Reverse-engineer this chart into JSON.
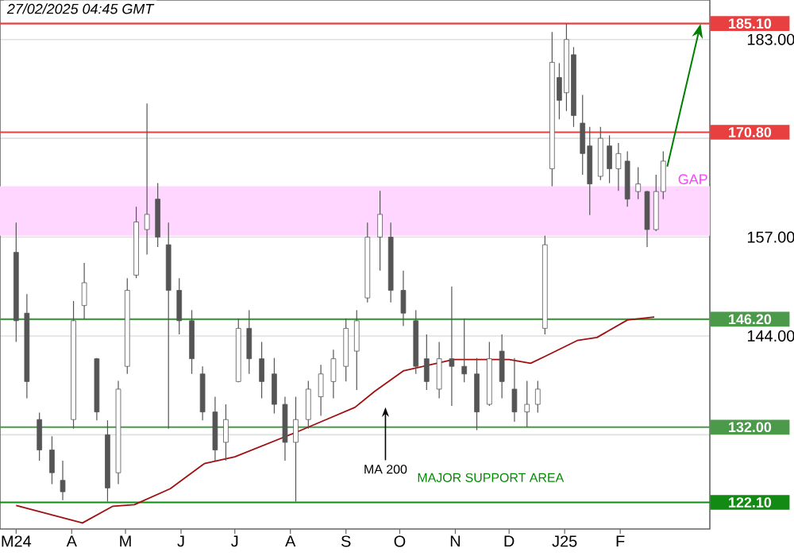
{
  "chart_data": {
    "type": "candlestick",
    "title": "27/02/2025 04:45 GMT",
    "color": "#555555",
    "x": [
      "2024-03-01",
      "2024-03-07",
      "2024-03-14",
      "2024-03-21",
      "2024-03-27",
      "2024-04-02",
      "2024-04-08",
      "2024-04-15",
      "2024-04-21",
      "2024-04-27",
      "2024-05-02",
      "2024-05-07",
      "2024-05-13",
      "2024-05-19",
      "2024-05-25",
      "2024-05-31",
      "2024-06-07",
      "2024-06-13",
      "2024-06-20",
      "2024-06-26",
      "2024-07-03",
      "2024-07-09",
      "2024-07-16",
      "2024-07-23",
      "2024-07-29",
      "2024-08-04",
      "2024-08-11",
      "2024-08-18",
      "2024-08-25",
      "2024-09-01",
      "2024-09-07",
      "2024-09-13",
      "2024-09-20",
      "2024-09-26",
      "2024-10-03",
      "2024-10-10",
      "2024-10-16",
      "2024-10-23",
      "2024-10-30",
      "2024-11-06",
      "2024-11-13",
      "2024-11-20",
      "2024-11-27",
      "2024-12-04",
      "2024-12-11",
      "2024-12-17",
      "2024-12-21",
      "2024-12-25",
      "2024-12-29",
      "2025-01-02",
      "2025-01-06",
      "2025-01-11",
      "2025-01-15",
      "2025-01-21",
      "2025-01-26",
      "2025-01-31",
      "2025-02-05",
      "2025-02-11",
      "2025-02-16",
      "2025-02-21",
      "2025-02-25"
    ],
    "ohlc": [
      [
        155,
        158.9,
        143.2,
        146
      ],
      [
        147,
        149.5,
        135.8,
        138
      ],
      [
        133,
        133.9,
        127.6,
        129
      ],
      [
        129,
        130.8,
        124.5,
        126
      ],
      [
        125,
        127.6,
        122.4,
        123.5
      ],
      [
        133,
        148.6,
        131.8,
        146
      ],
      [
        148,
        153.6,
        146.2,
        151
      ],
      [
        141,
        141.1,
        132.9,
        134
      ],
      [
        131,
        132.9,
        122.2,
        124
      ],
      [
        126,
        138.1,
        124.5,
        137
      ],
      [
        140,
        151.6,
        139,
        150
      ],
      [
        152,
        161,
        151.6,
        159
      ],
      [
        158,
        174.6,
        154.7,
        160
      ],
      [
        162,
        164.1,
        155.7,
        157
      ],
      [
        156,
        158.9,
        131.8,
        150
      ],
      [
        150,
        151.6,
        144.2,
        146
      ],
      [
        146,
        147.4,
        139,
        141
      ],
      [
        139,
        140,
        132.9,
        134
      ],
      [
        134,
        136,
        127.6,
        129
      ],
      [
        130,
        135,
        127.6,
        133
      ],
      [
        138,
        146.3,
        137.9,
        145
      ],
      [
        145,
        147.4,
        139,
        141
      ],
      [
        141,
        143.2,
        135.8,
        138
      ],
      [
        139,
        141.1,
        133.8,
        135
      ],
      [
        135,
        136,
        127.6,
        130
      ],
      [
        130,
        136,
        122.2,
        133
      ],
      [
        133,
        138.1,
        131.8,
        137
      ],
      [
        136,
        140.2,
        133.5,
        139
      ],
      [
        138,
        142.2,
        135.8,
        141
      ],
      [
        140,
        146.3,
        138,
        145
      ],
      [
        142,
        147.4,
        136.9,
        146
      ],
      [
        149,
        158.9,
        148.4,
        157
      ],
      [
        157,
        163.1,
        152.6,
        160
      ],
      [
        157,
        158.9,
        148.4,
        150
      ],
      [
        150,
        152.6,
        145.3,
        147
      ],
      [
        146,
        147.4,
        139,
        140
      ],
      [
        141,
        144.2,
        136.9,
        138
      ],
      [
        137,
        143.2,
        135.8,
        141
      ],
      [
        141,
        150.5,
        134.8,
        140
      ],
      [
        140,
        146.3,
        137.9,
        139
      ],
      [
        139,
        141.1,
        131.6,
        134
      ],
      [
        135,
        143.2,
        134.8,
        141
      ],
      [
        142,
        144.2,
        135.8,
        138
      ],
      [
        137,
        141.1,
        132.7,
        134
      ],
      [
        134,
        138.1,
        132,
        135
      ],
      [
        135,
        138.1,
        133.9,
        137
      ],
      [
        145,
        157.2,
        144.2,
        156
      ],
      [
        166,
        184,
        163.7,
        180
      ],
      [
        178,
        179.9,
        172.5,
        175
      ],
      [
        176,
        185.1,
        173.6,
        183
      ],
      [
        181,
        182,
        171.5,
        173
      ],
      [
        172,
        175.7,
        165.2,
        168
      ],
      [
        169,
        171.5,
        159.9,
        164
      ],
      [
        165,
        171.5,
        164.5,
        170
      ],
      [
        169,
        170.4,
        164.1,
        166
      ],
      [
        166,
        169.4,
        163.1,
        168
      ],
      [
        167,
        168.3,
        161,
        162
      ],
      [
        163,
        166.2,
        162,
        164
      ],
      [
        163,
        163.1,
        155.7,
        158
      ],
      [
        158,
        165.2,
        157.8,
        163
      ],
      [
        163,
        168.3,
        162,
        167
      ]
    ],
    "series": [
      {
        "type": "line",
        "color": "#a01010",
        "x": [
          "2024-03-01",
          "2024-04-07",
          "2024-04-24",
          "2024-05-06",
          "2024-05-26",
          "2024-06-14",
          "2024-07-01",
          "2024-08-05",
          "2024-08-22",
          "2024-09-06",
          "2024-09-17",
          "2024-10-03",
          "2024-10-31",
          "2024-12-01",
          "2024-12-13",
          "2024-12-21",
          "2025-01-08",
          "2025-01-19",
          "2025-02-05",
          "2025-02-20"
        ],
        "values": [
          121.7,
          119.4,
          121.6,
          121.8,
          123.9,
          127.2,
          128.1,
          131.4,
          133.1,
          134.6,
          136.7,
          139.4,
          140.9,
          140.9,
          140.4,
          141.3,
          143.4,
          143.8,
          146.1,
          146.5
        ]
      }
    ],
    "xlim": [
      "2024-02-21",
      "2025-03-23"
    ],
    "xticks": [
      {
        "value": "2024-03-01",
        "label": "M24"
      },
      {
        "value": "2024-04-01",
        "label": "A"
      },
      {
        "value": "2024-05-01",
        "label": "M"
      },
      {
        "value": "2024-06-01",
        "label": "J"
      },
      {
        "value": "2024-07-01",
        "label": "J"
      },
      {
        "value": "2024-08-01",
        "label": "A"
      },
      {
        "value": "2024-09-01",
        "label": "S"
      },
      {
        "value": "2024-10-01",
        "label": "O"
      },
      {
        "value": "2024-11-01",
        "label": "N"
      },
      {
        "value": "2024-12-01",
        "label": "D"
      },
      {
        "value": "2025-01-01",
        "label": "J25"
      },
      {
        "value": "2025-02-01",
        "label": "F"
      }
    ],
    "ylim": [
      118.6,
      188.2
    ],
    "yticks": [
      {
        "value": 131,
        "label": null
      },
      {
        "value": 144,
        "label": "144.00"
      },
      {
        "value": 157,
        "label": "157.00"
      },
      {
        "value": 170,
        "label": null
      },
      {
        "value": 183,
        "label": "183.00"
      }
    ],
    "grid": "y",
    "ref_lines": [
      {
        "axis": "y",
        "value": 185.1,
        "label": "185.10",
        "color": "#e84040"
      },
      {
        "axis": "y",
        "value": 170.8,
        "label": "170.80",
        "color": "#e84040"
      },
      {
        "axis": "y",
        "value": 146.2,
        "label": "146.20",
        "color": "#4a9a4a"
      },
      {
        "axis": "y",
        "value": 132,
        "label": "132.00",
        "color": "#4a9a4a"
      },
      {
        "axis": "y",
        "value": 122.1,
        "label": "122.10",
        "color": "#138a13"
      }
    ],
    "bands": [
      {
        "axis": "y",
        "from": 157.2,
        "to": 163.7,
        "label": "GAP",
        "color": "#ffd6ff"
      }
    ],
    "annotations": [
      "MA 200",
      "MAJOR SUPPORT AREA"
    ]
  }
}
